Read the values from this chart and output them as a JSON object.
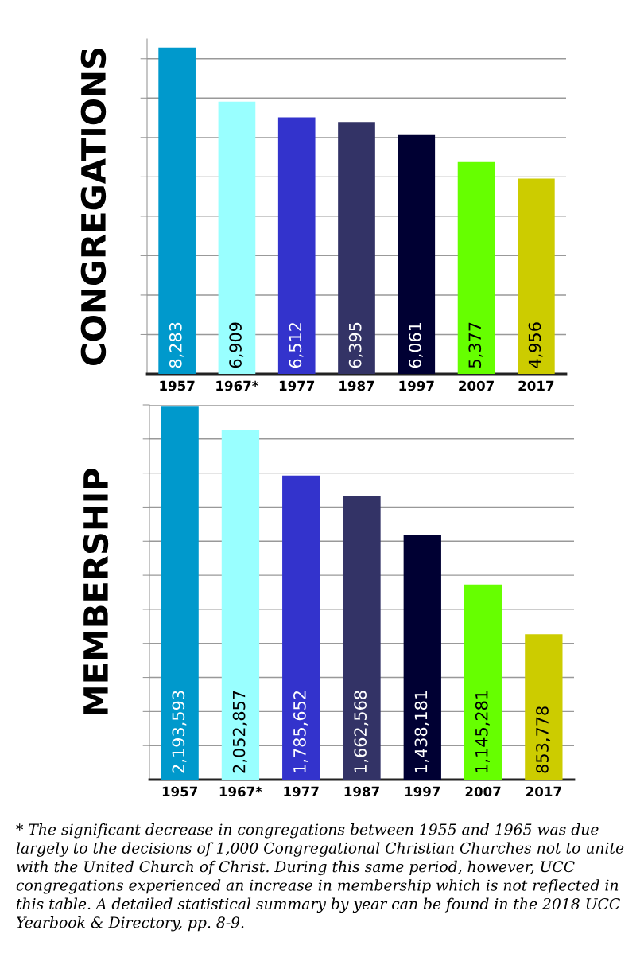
{
  "chart_data": [
    {
      "type": "bar",
      "ylabel": "CONGREGATIONS",
      "categories": [
        "1957",
        "1967*",
        "1977",
        "1987",
        "1997",
        "2007",
        "2017"
      ],
      "values": [
        8283,
        6909,
        6512,
        6395,
        6061,
        5377,
        4956
      ],
      "colors": [
        "#0099cc",
        "#99ffff",
        "#3333cc",
        "#333366",
        "#000033",
        "#66ff00",
        "#cccc00"
      ],
      "ylim": [
        0,
        8500
      ],
      "yticks": [
        {
          "value": 1000,
          "label": null
        },
        {
          "value": 2000,
          "label": null
        },
        {
          "value": 3000,
          "label": null
        },
        {
          "value": 4000,
          "label": null
        },
        {
          "value": 5000,
          "label": null
        },
        {
          "value": 6000,
          "label": null
        },
        {
          "value": 7000,
          "label": null
        },
        {
          "value": 8000,
          "label": null
        }
      ],
      "grid": "y",
      "value_labels": [
        "8,283",
        "6,909",
        "6,512",
        "6,395",
        "6,061",
        "5,377",
        "4,956"
      ]
    },
    {
      "type": "bar",
      "ylabel": "MEMBERSHIP",
      "categories": [
        "1957",
        "1967*",
        "1977",
        "1987",
        "1997",
        "2007",
        "2017"
      ],
      "values": [
        2193593,
        2052857,
        1785652,
        1662568,
        1438181,
        1145281,
        853778
      ],
      "colors": [
        "#0099cc",
        "#99ffff",
        "#3333cc",
        "#333366",
        "#000033",
        "#66ff00",
        "#cccc00"
      ],
      "ylim": [
        0,
        2200000
      ],
      "yticks": [
        {
          "value": 200000,
          "label": null
        },
        {
          "value": 400000,
          "label": null
        },
        {
          "value": 600000,
          "label": null
        },
        {
          "value": 800000,
          "label": null
        },
        {
          "value": 1000000,
          "label": null
        },
        {
          "value": 1200000,
          "label": null
        },
        {
          "value": 1400000,
          "label": null
        },
        {
          "value": 1600000,
          "label": null
        },
        {
          "value": 1800000,
          "label": null
        },
        {
          "value": 2000000,
          "label": null
        },
        {
          "value": 2200000,
          "label": null
        }
      ],
      "grid": "y",
      "value_labels": [
        "2,193,593",
        "2,052,857",
        "1,785,652",
        "1,662,568",
        "1,438,181",
        "1,145,281",
        "853,778"
      ],
      "annotations": [
        "* The significant decrease in congregations between 1955 and 1965 was due largely to the decisions of 1,000 Congregational Christian Churches not to unite with the United Church of Christ. During this same period, however, UCC congregations experienced an increase in membership which is not reflected in this table. A detailed statistical summary by year can be found in the 2018 UCC Yearbook & Directory, pp. 8-9."
      ]
    }
  ]
}
